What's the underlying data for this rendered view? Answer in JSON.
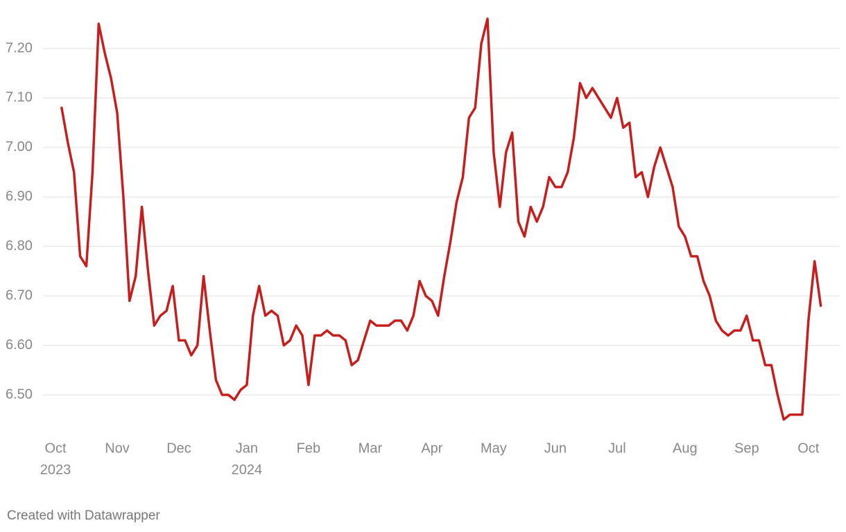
{
  "chart_data": {
    "type": "line",
    "categories": [
      "Oct",
      null,
      null,
      null,
      null,
      null,
      null,
      null,
      null,
      null,
      "Nov",
      null,
      null,
      null,
      null,
      null,
      null,
      null,
      null,
      null,
      "Dec",
      null,
      null,
      null,
      null,
      null,
      null,
      null,
      null,
      null,
      null,
      "Jan",
      null,
      null,
      null,
      null,
      null,
      null,
      null,
      null,
      null,
      "Feb",
      null,
      null,
      null,
      null,
      null,
      null,
      null,
      null,
      null,
      "Mar",
      null,
      null,
      null,
      null,
      null,
      null,
      null,
      null,
      null,
      "Apr",
      null,
      null,
      null,
      null,
      null,
      null,
      null,
      null,
      null,
      "May",
      null,
      null,
      null,
      null,
      null,
      null,
      null,
      null,
      null,
      "Jun",
      null,
      null,
      null,
      null,
      null,
      null,
      null,
      null,
      null,
      "Jul",
      null,
      null,
      null,
      null,
      null,
      null,
      null,
      null,
      null,
      null,
      "Aug",
      null,
      null,
      null,
      null,
      null,
      null,
      null,
      null,
      null,
      "Sep",
      null,
      null,
      null,
      null,
      null,
      null,
      null,
      null,
      null,
      "Oct",
      null,
      null
    ],
    "category_years": [
      "2023",
      null,
      null,
      null,
      null,
      null,
      null,
      null,
      null,
      null,
      null,
      null,
      null,
      null,
      null,
      null,
      null,
      null,
      null,
      null,
      null,
      null,
      null,
      null,
      null,
      null,
      null,
      null,
      null,
      null,
      null,
      "2024",
      null,
      null,
      null,
      null,
      null,
      null,
      null,
      null,
      null,
      null,
      null,
      null,
      null,
      null,
      null,
      null,
      null,
      null,
      null,
      null,
      null,
      null,
      null,
      null,
      null,
      null,
      null,
      null,
      null,
      null,
      null,
      null,
      null,
      null,
      null,
      null,
      null,
      null,
      null,
      null,
      null,
      null,
      null,
      null,
      null,
      null,
      null,
      null,
      null,
      null,
      null,
      null,
      null,
      null,
      null,
      null,
      null,
      null,
      null,
      null,
      null,
      null,
      null,
      null,
      null,
      null,
      null,
      null,
      null,
      null,
      null,
      null,
      null,
      null,
      null,
      null,
      null,
      null,
      null,
      null,
      null,
      null,
      null,
      null,
      null,
      null,
      null,
      null,
      null,
      null,
      null,
      null,
      null
    ],
    "series": [
      {
        "color": "#c71e1d",
        "values": [
          null,
          7.08,
          7.01,
          6.95,
          6.78,
          6.76,
          6.95,
          7.25,
          7.19,
          7.14,
          7.07,
          6.9,
          6.69,
          6.74,
          6.88,
          6.75,
          6.64,
          6.66,
          6.67,
          6.72,
          6.61,
          6.61,
          6.58,
          6.6,
          6.74,
          6.63,
          6.53,
          6.5,
          6.5,
          6.49,
          6.51,
          6.52,
          6.66,
          6.72,
          6.66,
          6.67,
          6.66,
          6.6,
          6.61,
          6.64,
          6.62,
          6.52,
          6.62,
          6.62,
          6.63,
          6.62,
          6.62,
          6.61,
          6.56,
          6.57,
          6.61,
          6.65,
          6.64,
          6.64,
          6.64,
          6.65,
          6.65,
          6.63,
          6.66,
          6.73,
          6.7,
          6.69,
          6.66,
          6.74,
          6.81,
          6.89,
          6.94,
          7.06,
          7.08,
          7.21,
          7.26,
          6.99,
          6.88,
          6.99,
          7.03,
          6.85,
          6.82,
          6.88,
          6.85,
          6.88,
          6.94,
          6.92,
          6.92,
          6.95,
          7.02,
          7.13,
          7.1,
          7.12,
          7.1,
          7.08,
          7.06,
          7.1,
          7.04,
          7.05,
          6.94,
          6.95,
          6.9,
          6.96,
          7.0,
          6.96,
          6.92,
          6.84,
          6.82,
          6.78,
          6.78,
          6.73,
          6.7,
          6.65,
          6.63,
          6.62,
          6.63,
          6.63,
          6.66,
          6.61,
          6.61,
          6.56,
          6.56,
          6.5,
          6.45,
          6.46,
          6.46,
          6.46,
          6.65,
          6.77,
          6.68
        ]
      }
    ],
    "ylim": [
      6.43,
      7.27
    ],
    "yticks": [
      {
        "value": 6.5,
        "label": "6.50"
      },
      {
        "value": 6.6,
        "label": "6.60"
      },
      {
        "value": 6.7,
        "label": "6.70"
      },
      {
        "value": 6.8,
        "label": "6.80"
      },
      {
        "value": 6.9,
        "label": "6.90"
      },
      {
        "value": 7.0,
        "label": "7.00"
      },
      {
        "value": 7.1,
        "label": "7.10"
      },
      {
        "value": 7.2,
        "label": "7.20"
      }
    ],
    "grid": true,
    "credit": "Created with Datawrapper"
  }
}
